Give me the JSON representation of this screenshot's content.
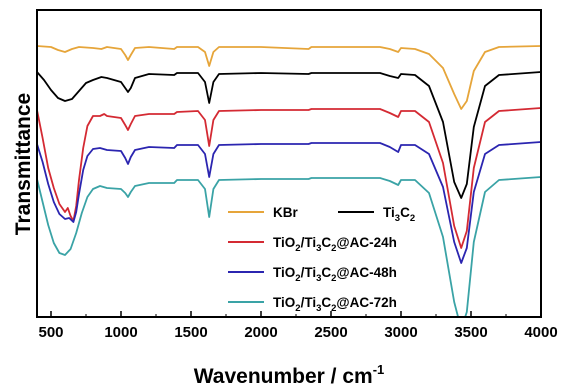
{
  "chart_data": {
    "type": "line",
    "title": "",
    "xlabel": "Wavenumber  / cm",
    "xlabel_superscript": "-1",
    "ylabel": "Transmittance",
    "xlim": [
      400,
      4000
    ],
    "x_ticks": [
      500,
      1000,
      1500,
      2000,
      2500,
      3000,
      3500,
      4000
    ],
    "y_ticks": "none",
    "grid": false,
    "legend_position": "center-right",
    "series": [
      {
        "name": "KBr",
        "name_parts": [
          [
            "KBr",
            ""
          ]
        ],
        "color": "#e6a53a",
        "baseline": 0,
        "points": [
          [
            400,
            0
          ],
          [
            500,
            -1
          ],
          [
            550,
            -4
          ],
          [
            600,
            -6
          ],
          [
            650,
            -3
          ],
          [
            700,
            -1
          ],
          [
            800,
            -2
          ],
          [
            860,
            -3
          ],
          [
            900,
            -1
          ],
          [
            1000,
            -3
          ],
          [
            1030,
            -9
          ],
          [
            1050,
            -14
          ],
          [
            1070,
            -9
          ],
          [
            1100,
            -2
          ],
          [
            1200,
            -1
          ],
          [
            1380,
            -3
          ],
          [
            1400,
            -1
          ],
          [
            1550,
            -1
          ],
          [
            1600,
            -6
          ],
          [
            1630,
            -20
          ],
          [
            1660,
            -6
          ],
          [
            1700,
            -1
          ],
          [
            2000,
            -1
          ],
          [
            2340,
            -3
          ],
          [
            2360,
            -1
          ],
          [
            2850,
            -1
          ],
          [
            2920,
            -3
          ],
          [
            2980,
            -6
          ],
          [
            3000,
            -2
          ],
          [
            3100,
            -3
          ],
          [
            3200,
            -8
          ],
          [
            3300,
            -22
          ],
          [
            3380,
            -48
          ],
          [
            3430,
            -63
          ],
          [
            3470,
            -55
          ],
          [
            3520,
            -25
          ],
          [
            3600,
            -6
          ],
          [
            3700,
            -1
          ],
          [
            4000,
            0
          ]
        ]
      },
      {
        "name": "Ti3C2",
        "name_parts": [
          [
            "Ti",
            ""
          ],
          [
            "3",
            "sub"
          ],
          [
            "C",
            ""
          ],
          [
            "2",
            "sub"
          ]
        ],
        "color": "#000000",
        "baseline": -26,
        "points": [
          [
            400,
            0
          ],
          [
            450,
            -8
          ],
          [
            500,
            -18
          ],
          [
            550,
            -26
          ],
          [
            600,
            -29
          ],
          [
            650,
            -27
          ],
          [
            700,
            -19
          ],
          [
            750,
            -11
          ],
          [
            800,
            -8
          ],
          [
            860,
            -5
          ],
          [
            900,
            -6
          ],
          [
            1000,
            -10
          ],
          [
            1030,
            -16
          ],
          [
            1050,
            -20
          ],
          [
            1070,
            -16
          ],
          [
            1100,
            -6
          ],
          [
            1200,
            -2
          ],
          [
            1380,
            -3
          ],
          [
            1400,
            -1
          ],
          [
            1550,
            -1
          ],
          [
            1600,
            -10
          ],
          [
            1630,
            -31
          ],
          [
            1660,
            -10
          ],
          [
            1700,
            -2
          ],
          [
            2000,
            -1
          ],
          [
            2340,
            -2
          ],
          [
            2360,
            -1
          ],
          [
            2850,
            -1
          ],
          [
            2920,
            -4
          ],
          [
            2980,
            -6
          ],
          [
            3000,
            -2
          ],
          [
            3100,
            -3
          ],
          [
            3200,
            -14
          ],
          [
            3300,
            -50
          ],
          [
            3380,
            -110
          ],
          [
            3430,
            -126
          ],
          [
            3470,
            -112
          ],
          [
            3520,
            -55
          ],
          [
            3600,
            -14
          ],
          [
            3700,
            -3
          ],
          [
            4000,
            0
          ]
        ]
      },
      {
        "name": "TiO2/Ti3C2@AC-24h",
        "name_parts": [
          [
            "TiO",
            ""
          ],
          [
            "2",
            "sub"
          ],
          [
            "/Ti",
            ""
          ],
          [
            "3",
            "sub"
          ],
          [
            "C",
            ""
          ],
          [
            "2",
            "sub"
          ],
          [
            "@AC-24h",
            ""
          ]
        ],
        "color": "#d42a33",
        "baseline": -62,
        "points": [
          [
            400,
            -2
          ],
          [
            440,
            -30
          ],
          [
            480,
            -60
          ],
          [
            520,
            -80
          ],
          [
            560,
            -96
          ],
          [
            600,
            -104
          ],
          [
            620,
            -100
          ],
          [
            640,
            -108
          ],
          [
            660,
            -113
          ],
          [
            680,
            -98
          ],
          [
            700,
            -72
          ],
          [
            730,
            -40
          ],
          [
            760,
            -18
          ],
          [
            800,
            -8
          ],
          [
            850,
            -8
          ],
          [
            880,
            -6
          ],
          [
            900,
            -8
          ],
          [
            1000,
            -10
          ],
          [
            1030,
            -17
          ],
          [
            1050,
            -22
          ],
          [
            1070,
            -16
          ],
          [
            1100,
            -8
          ],
          [
            1200,
            -6
          ],
          [
            1380,
            -6
          ],
          [
            1400,
            -4
          ],
          [
            1550,
            -3
          ],
          [
            1600,
            -12
          ],
          [
            1630,
            -38
          ],
          [
            1660,
            -12
          ],
          [
            1700,
            -3
          ],
          [
            2000,
            -2
          ],
          [
            2340,
            -2
          ],
          [
            2360,
            -1
          ],
          [
            2850,
            -1
          ],
          [
            2920,
            -5
          ],
          [
            2980,
            -9
          ],
          [
            3000,
            -3
          ],
          [
            3100,
            -3
          ],
          [
            3200,
            -14
          ],
          [
            3300,
            -55
          ],
          [
            3380,
            -118
          ],
          [
            3430,
            -140
          ],
          [
            3470,
            -123
          ],
          [
            3520,
            -60
          ],
          [
            3600,
            -14
          ],
          [
            3700,
            -3
          ],
          [
            4000,
            0
          ]
        ]
      },
      {
        "name": "TiO2/Ti3C2@AC-48h",
        "name_parts": [
          [
            "TiO",
            ""
          ],
          [
            "2",
            "sub"
          ],
          [
            "/Ti",
            ""
          ],
          [
            "3",
            "sub"
          ],
          [
            "C",
            ""
          ],
          [
            "2",
            "sub"
          ],
          [
            "@AC-48h",
            ""
          ]
        ],
        "color": "#2b25b0",
        "baseline": -96,
        "points": [
          [
            400,
            -2
          ],
          [
            440,
            -20
          ],
          [
            480,
            -42
          ],
          [
            520,
            -60
          ],
          [
            560,
            -72
          ],
          [
            600,
            -77
          ],
          [
            630,
            -76
          ],
          [
            660,
            -80
          ],
          [
            680,
            -70
          ],
          [
            700,
            -52
          ],
          [
            730,
            -28
          ],
          [
            760,
            -14
          ],
          [
            800,
            -7
          ],
          [
            850,
            -6
          ],
          [
            900,
            -8
          ],
          [
            1000,
            -9
          ],
          [
            1030,
            -16
          ],
          [
            1050,
            -22
          ],
          [
            1070,
            -15
          ],
          [
            1100,
            -8
          ],
          [
            1200,
            -5
          ],
          [
            1380,
            -6
          ],
          [
            1400,
            -3
          ],
          [
            1550,
            -3
          ],
          [
            1600,
            -12
          ],
          [
            1630,
            -35
          ],
          [
            1660,
            -12
          ],
          [
            1700,
            -3
          ],
          [
            2000,
            -2
          ],
          [
            2340,
            -2
          ],
          [
            2360,
            -1
          ],
          [
            2850,
            -1
          ],
          [
            2920,
            -5
          ],
          [
            2980,
            -10
          ],
          [
            3000,
            -3
          ],
          [
            3100,
            -3
          ],
          [
            3200,
            -12
          ],
          [
            3300,
            -45
          ],
          [
            3380,
            -100
          ],
          [
            3430,
            -121
          ],
          [
            3470,
            -106
          ],
          [
            3520,
            -50
          ],
          [
            3600,
            -12
          ],
          [
            3700,
            -3
          ],
          [
            4000,
            0
          ]
        ]
      },
      {
        "name": "TiO2/Ti3C2@AC-72h",
        "name_parts": [
          [
            "TiO",
            ""
          ],
          [
            "2",
            "sub"
          ],
          [
            "/Ti",
            ""
          ],
          [
            "3",
            "sub"
          ],
          [
            "C",
            ""
          ],
          [
            "2",
            "sub"
          ],
          [
            "@AC-72h",
            ""
          ]
        ],
        "color": "#3aa3a6",
        "baseline": -131,
        "points": [
          [
            400,
            -2
          ],
          [
            440,
            -25
          ],
          [
            480,
            -48
          ],
          [
            520,
            -66
          ],
          [
            560,
            -76
          ],
          [
            600,
            -78
          ],
          [
            640,
            -72
          ],
          [
            680,
            -56
          ],
          [
            720,
            -36
          ],
          [
            760,
            -20
          ],
          [
            800,
            -12
          ],
          [
            850,
            -9
          ],
          [
            900,
            -11
          ],
          [
            1000,
            -12
          ],
          [
            1030,
            -16
          ],
          [
            1050,
            -20
          ],
          [
            1070,
            -15
          ],
          [
            1100,
            -9
          ],
          [
            1200,
            -6
          ],
          [
            1380,
            -6
          ],
          [
            1400,
            -3
          ],
          [
            1550,
            -3
          ],
          [
            1600,
            -12
          ],
          [
            1630,
            -40
          ],
          [
            1660,
            -12
          ],
          [
            1700,
            -3
          ],
          [
            2000,
            -2
          ],
          [
            2340,
            -2
          ],
          [
            2360,
            -1
          ],
          [
            2850,
            -1
          ],
          [
            2920,
            -4
          ],
          [
            2980,
            -8
          ],
          [
            3000,
            -3
          ],
          [
            3100,
            -3
          ],
          [
            3200,
            -16
          ],
          [
            3300,
            -60
          ],
          [
            3380,
            -125
          ],
          [
            3430,
            -152
          ],
          [
            3470,
            -135
          ],
          [
            3520,
            -65
          ],
          [
            3600,
            -15
          ],
          [
            3700,
            -3
          ],
          [
            4000,
            0
          ]
        ]
      }
    ]
  }
}
